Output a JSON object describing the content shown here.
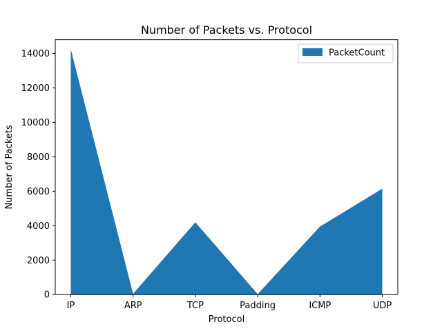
{
  "chart_data": {
    "type": "area",
    "title": "Number of Packets vs. Protocol",
    "xlabel": "Protocol",
    "ylabel": "Number of Packets",
    "categories": [
      "IP",
      "ARP",
      "TCP",
      "Padding",
      "ICMP",
      "UDP"
    ],
    "series": [
      {
        "name": "PacketCount",
        "values": [
          14250,
          50,
          4200,
          30,
          3950,
          6150
        ],
        "color": "#1f77b4"
      }
    ],
    "ylim": [
      0,
      14800
    ],
    "yticks": [
      0,
      2000,
      4000,
      6000,
      8000,
      10000,
      12000,
      14000
    ],
    "grid": false,
    "legend_position": "top-right"
  }
}
